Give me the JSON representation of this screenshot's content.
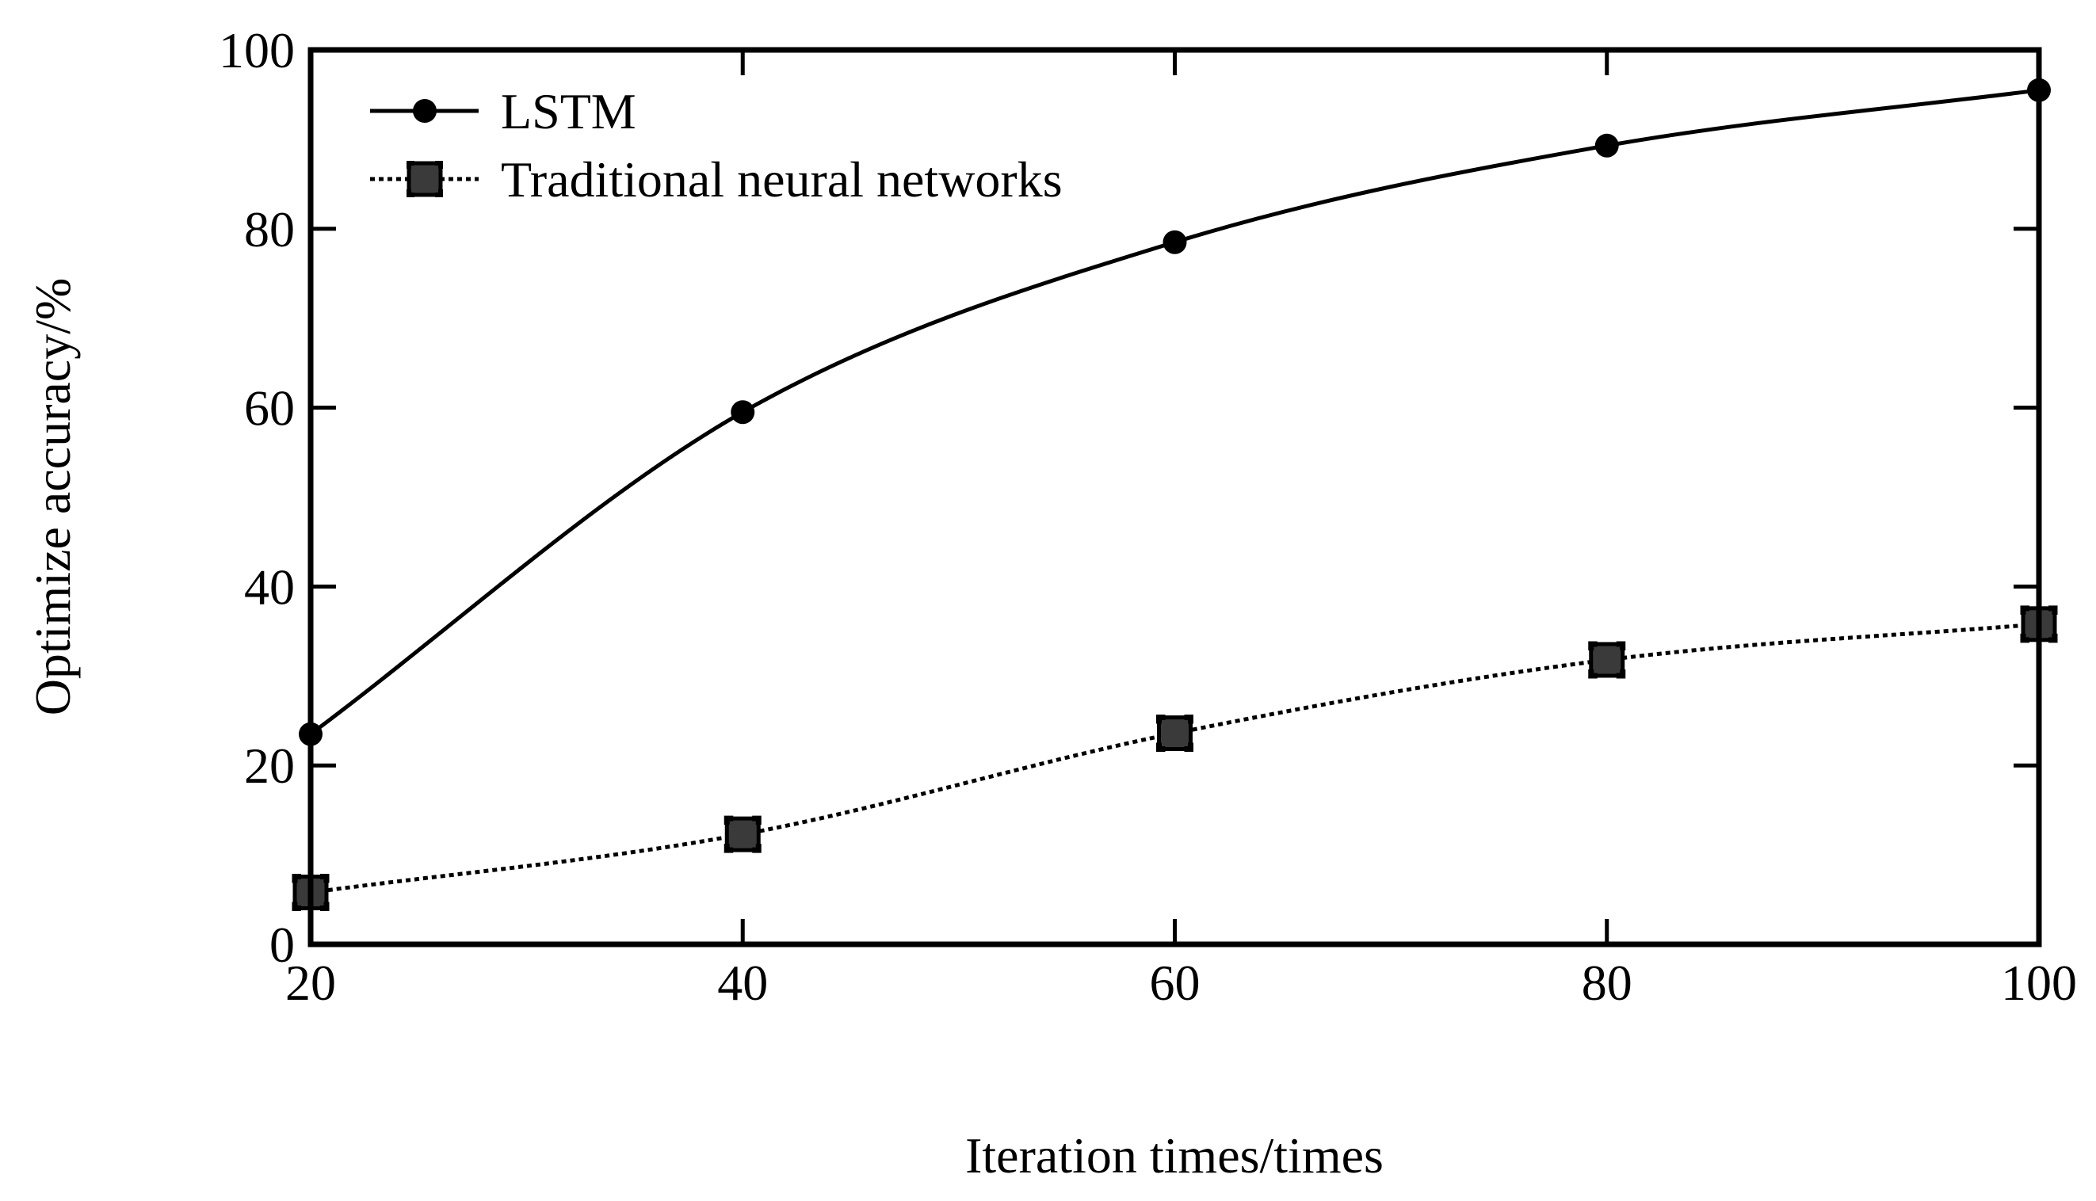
{
  "chart_data": {
    "type": "line",
    "xlabel": "Iteration times/times",
    "ylabel": "Optimize accuracy/%",
    "xlim": [
      20,
      100
    ],
    "ylim": [
      0,
      100
    ],
    "x_ticks": [
      "20",
      "40",
      "60",
      "80",
      "100"
    ],
    "y_ticks": [
      "0",
      "20",
      "40",
      "60",
      "80",
      "100"
    ],
    "grid": false,
    "legend_position": "top-left",
    "x": [
      20,
      40,
      60,
      80,
      100
    ],
    "series": [
      {
        "name": "LSTM",
        "values": [
          23.5,
          59.5,
          78.5,
          89.3,
          95.5
        ],
        "marker": "circle",
        "line_style": "solid",
        "color": "#000000"
      },
      {
        "name": "Traditional neural networks",
        "values": [
          5.8,
          12.3,
          23.6,
          31.8,
          35.8
        ],
        "marker": "square",
        "line_style": "dotted",
        "color": "#000000",
        "marker_fill": "#3a3a3a"
      }
    ]
  }
}
